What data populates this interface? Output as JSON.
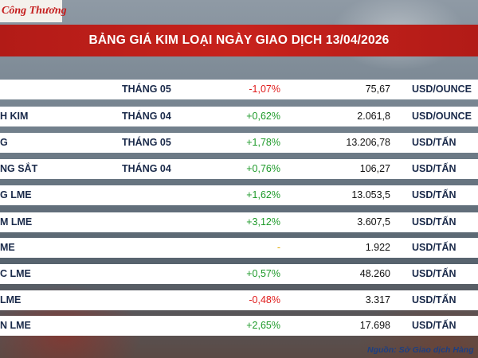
{
  "brand": {
    "logo_text": "Công Thương"
  },
  "title": "BẢNG GIÁ KIM LOẠI NGÀY GIAO DỊCH 13/04/2026",
  "rows": [
    {
      "name": "",
      "month": "THÁNG 05",
      "change": "-1,07%",
      "trend": "neg",
      "price": "75,67",
      "unit": "USD/OUNCE"
    },
    {
      "name": "H KIM",
      "month": "THÁNG 04",
      "change": "+0,62%",
      "trend": "pos",
      "price": "2.061,8",
      "unit": "USD/OUNCE"
    },
    {
      "name": "G",
      "month": "THÁNG 05",
      "change": "+1,78%",
      "trend": "pos",
      "price": "13.206,78",
      "unit": "USD/TẤN"
    },
    {
      "name": "NG SẮT",
      "month": "THÁNG 04",
      "change": "+0,76%",
      "trend": "pos",
      "price": "106,27",
      "unit": "USD/TẤN"
    },
    {
      "name": "G LME",
      "month": "",
      "change": "+1,62%",
      "trend": "pos",
      "price": "13.053,5",
      "unit": "USD/TẤN"
    },
    {
      "name": "M LME",
      "month": "",
      "change": "+3,12%",
      "trend": "pos",
      "price": "3.607,5",
      "unit": "USD/TẤN"
    },
    {
      "name": "ME",
      "month": "",
      "change": "-",
      "trend": "neu",
      "price": "1.922",
      "unit": "USD/TẤN"
    },
    {
      "name": "C LME",
      "month": "",
      "change": "+0,57%",
      "trend": "pos",
      "price": "48.260",
      "unit": "USD/TẤN"
    },
    {
      "name": "LME",
      "month": "",
      "change": "-0,48%",
      "trend": "neg",
      "price": "3.317",
      "unit": "USD/TẤN"
    },
    {
      "name": "N LME",
      "month": "",
      "change": "+2,65%",
      "trend": "pos",
      "price": "17.698",
      "unit": "USD/TẤN"
    }
  ],
  "source": "Nguồn: Sở Giao dịch Hàng"
}
